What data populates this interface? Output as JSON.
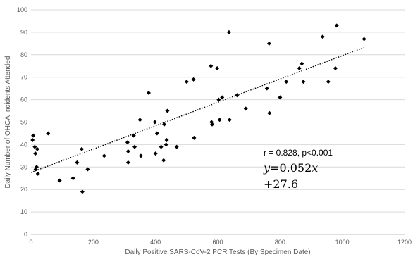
{
  "chart_data": {
    "type": "scatter",
    "xlabel": "Daily Positive SARS-CoV-2 PCR Tests (By Specimen Date)",
    "ylabel": "Daily Number of OHCA Incidents Attended",
    "xlim": [
      0,
      1200
    ],
    "ylim": [
      0,
      100
    ],
    "x_ticks": [
      0,
      200,
      400,
      600,
      800,
      1000,
      1200
    ],
    "y_ticks": [
      0,
      10,
      20,
      30,
      40,
      50,
      60,
      70,
      80,
      90,
      100
    ],
    "grid": "horizontal",
    "points": [
      [
        5,
        42
      ],
      [
        7,
        44
      ],
      [
        12,
        39
      ],
      [
        14,
        36
      ],
      [
        15,
        29
      ],
      [
        18,
        30
      ],
      [
        20,
        38
      ],
      [
        22,
        27
      ],
      [
        55,
        45
      ],
      [
        92,
        24
      ],
      [
        135,
        25
      ],
      [
        148,
        32
      ],
      [
        163,
        38
      ],
      [
        165,
        19
      ],
      [
        182,
        29
      ],
      [
        235,
        35
      ],
      [
        310,
        41
      ],
      [
        312,
        37
      ],
      [
        312,
        32
      ],
      [
        330,
        44
      ],
      [
        333,
        39
      ],
      [
        350,
        51
      ],
      [
        353,
        35
      ],
      [
        378,
        63
      ],
      [
        398,
        50
      ],
      [
        400,
        36
      ],
      [
        405,
        45
      ],
      [
        418,
        39
      ],
      [
        426,
        33
      ],
      [
        428,
        49
      ],
      [
        434,
        40
      ],
      [
        436,
        42
      ],
      [
        438,
        55
      ],
      [
        468,
        39
      ],
      [
        500,
        68
      ],
      [
        522,
        69
      ],
      [
        524,
        43
      ],
      [
        578,
        75
      ],
      [
        580,
        50
      ],
      [
        582,
        49
      ],
      [
        598,
        74
      ],
      [
        603,
        60
      ],
      [
        606,
        51
      ],
      [
        614,
        61
      ],
      [
        636,
        90
      ],
      [
        638,
        51
      ],
      [
        662,
        62
      ],
      [
        690,
        56
      ],
      [
        758,
        65
      ],
      [
        765,
        85
      ],
      [
        766,
        54
      ],
      [
        800,
        61
      ],
      [
        820,
        68
      ],
      [
        862,
        74
      ],
      [
        870,
        76
      ],
      [
        875,
        68
      ],
      [
        937,
        88
      ],
      [
        955,
        68
      ],
      [
        978,
        74
      ],
      [
        982,
        93
      ],
      [
        1070,
        87
      ]
    ],
    "trendline": {
      "style": "dotted",
      "x": [
        0,
        1070
      ],
      "slope": 0.052,
      "intercept": 27.6
    },
    "annotations": {
      "r_text": "r = 0.828, p<0.001",
      "eq_line1": "𝑦=0.052𝑥",
      "eq_line2": "+27.6"
    },
    "colors": {
      "marker": "#000000",
      "grid": "#d9d9d9",
      "text": "#595959"
    }
  }
}
